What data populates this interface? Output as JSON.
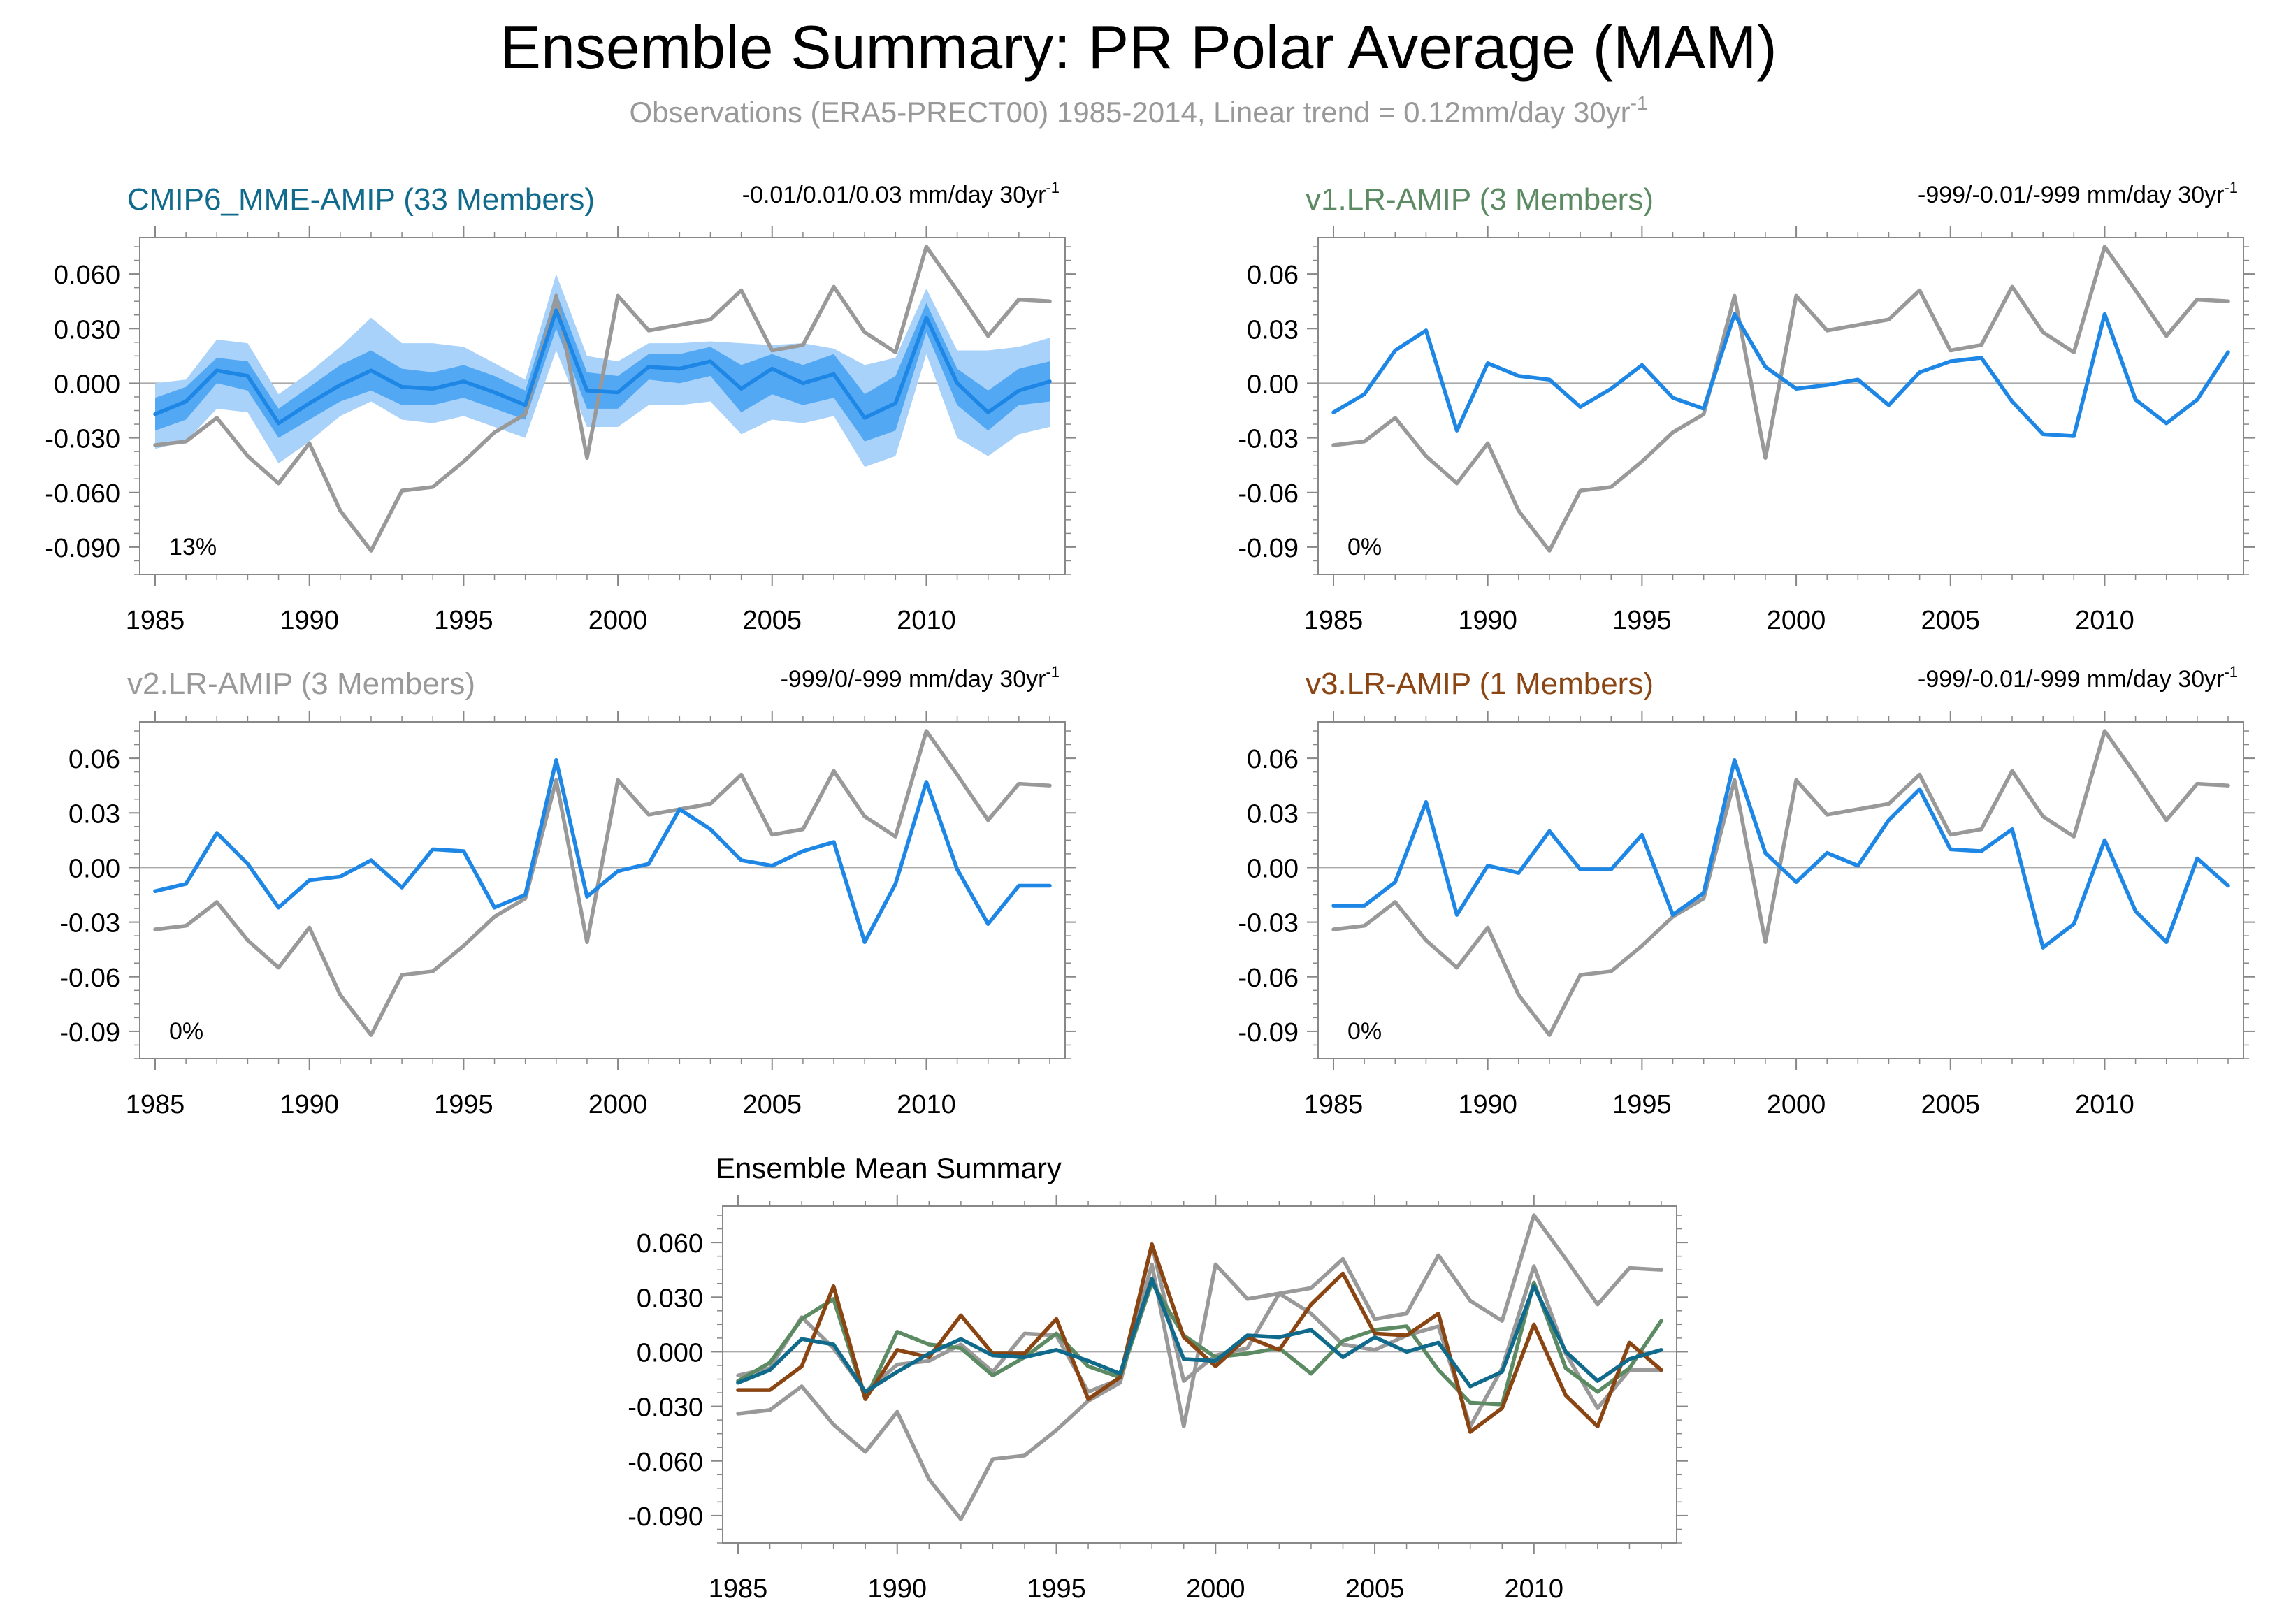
{
  "figure": {
    "title": "Ensemble Summary: PR Polar Average (MAM)",
    "subtitle_main": "Observations (ERA5-PRECT00) 1985-2014, Linear trend = 0.12mm/day 30yr",
    "subtitle_sup": "-1"
  },
  "colors": {
    "obs": "#999999",
    "model": "#1e87e5",
    "band_outer": "#a9d2fb",
    "band_inner": "#53a8f4",
    "mme": "#0f6a8b",
    "v1": "#5c8a62",
    "v2": "#999999",
    "v3": "#8a4513",
    "zero_line": "#aaaaaa",
    "axis": "#888888"
  },
  "chart_data": [
    {
      "type": "line",
      "title": "CMIP6_MME-AMIP (33 Members)",
      "trend_text": "-0.01/0.01/0.03 mm/day 30yr",
      "trend_sup": "-1",
      "percent_text": "13%",
      "x": [
        1985,
        1986,
        1987,
        1988,
        1989,
        1990,
        1991,
        1992,
        1993,
        1994,
        1995,
        1996,
        1997,
        1998,
        1999,
        2000,
        2001,
        2002,
        2003,
        2004,
        2005,
        2006,
        2007,
        2008,
        2009,
        2010,
        2011,
        2012,
        2013,
        2014
      ],
      "ylim": [
        -0.105,
        0.08
      ],
      "yticks": [
        "0.060",
        "0.030",
        "0.000",
        "-0.030",
        "-0.060",
        "-0.090"
      ],
      "ytick_values": [
        0.06,
        0.03,
        0.0,
        -0.03,
        -0.06,
        -0.09
      ],
      "xticks": [
        1985,
        1990,
        1995,
        2000,
        2005,
        2010
      ],
      "bands": {
        "outer_upper": [
          0.0,
          0.002,
          0.024,
          0.022,
          -0.006,
          0.006,
          0.02,
          0.036,
          0.022,
          0.022,
          0.02,
          0.011,
          0.002,
          0.06,
          0.015,
          0.012,
          0.022,
          0.022,
          0.023,
          0.022,
          0.021,
          0.022,
          0.019,
          0.01,
          0.014,
          0.052,
          0.018,
          0.018,
          0.02,
          0.025
        ],
        "outer_lower": [
          -0.036,
          -0.032,
          -0.014,
          -0.016,
          -0.044,
          -0.032,
          -0.018,
          -0.01,
          -0.02,
          -0.022,
          -0.018,
          -0.024,
          -0.03,
          0.018,
          -0.024,
          -0.024,
          -0.012,
          -0.012,
          -0.01,
          -0.028,
          -0.02,
          -0.022,
          -0.018,
          -0.046,
          -0.04,
          0.016,
          -0.03,
          -0.04,
          -0.028,
          -0.024
        ],
        "inner_upper": [
          -0.008,
          -0.002,
          0.014,
          0.012,
          -0.014,
          -0.002,
          0.01,
          0.018,
          0.008,
          0.006,
          0.01,
          0.004,
          -0.004,
          0.05,
          0.006,
          0.004,
          0.016,
          0.016,
          0.02,
          0.01,
          0.016,
          0.01,
          0.016,
          -0.006,
          0.004,
          0.044,
          0.008,
          -0.004,
          0.008,
          0.012
        ],
        "inner_lower": [
          -0.026,
          -0.02,
          0.0,
          -0.004,
          -0.03,
          -0.02,
          -0.01,
          -0.004,
          -0.012,
          -0.012,
          -0.008,
          -0.014,
          -0.02,
          0.03,
          -0.014,
          -0.014,
          0.002,
          0.0,
          0.004,
          -0.016,
          -0.006,
          -0.012,
          -0.008,
          -0.032,
          -0.026,
          0.028,
          -0.012,
          -0.026,
          -0.012,
          -0.01
        ]
      },
      "series": [
        {
          "name": "",
          "role": "obs",
          "values": [
            -0.034,
            -0.032,
            -0.019,
            -0.04,
            -0.055,
            -0.033,
            -0.07,
            -0.092,
            -0.059,
            -0.057,
            -0.043,
            -0.027,
            -0.017,
            0.048,
            -0.041,
            0.048,
            0.029,
            0.032,
            0.035,
            0.051,
            0.018,
            0.021,
            0.053,
            0.028,
            0.017,
            0.075,
            0.051,
            0.026,
            0.046,
            0.045
          ]
        },
        {
          "name": "",
          "role": "model",
          "values": [
            -0.017,
            -0.01,
            0.007,
            0.004,
            -0.022,
            -0.011,
            -0.001,
            0.007,
            -0.002,
            -0.003,
            0.001,
            -0.005,
            -0.012,
            0.04,
            -0.004,
            -0.005,
            0.009,
            0.008,
            0.012,
            -0.003,
            0.008,
            0.0,
            0.005,
            -0.019,
            -0.011,
            0.036,
            0.0,
            -0.016,
            -0.004,
            0.001
          ]
        }
      ]
    },
    {
      "type": "line",
      "title": "v1.LR-AMIP (3 Members)",
      "trend_text": "-999/-0.01/-999 mm/day 30yr",
      "trend_sup": "-1",
      "percent_text": "0%",
      "x": [
        1985,
        1986,
        1987,
        1988,
        1989,
        1990,
        1991,
        1992,
        1993,
        1994,
        1995,
        1996,
        1997,
        1998,
        1999,
        2000,
        2001,
        2002,
        2003,
        2004,
        2005,
        2006,
        2007,
        2008,
        2009,
        2010,
        2011,
        2012,
        2013,
        2014
      ],
      "ylim": [
        -0.105,
        0.08
      ],
      "yticks": [
        "0.06",
        "0.03",
        "0.00",
        "-0.03",
        "-0.06",
        "-0.09"
      ],
      "ytick_values": [
        0.06,
        0.03,
        0.0,
        -0.03,
        -0.06,
        -0.09
      ],
      "xticks": [
        1985,
        1990,
        1995,
        2000,
        2005,
        2010
      ],
      "series": [
        {
          "name": "",
          "role": "obs",
          "values": [
            -0.034,
            -0.032,
            -0.019,
            -0.04,
            -0.055,
            -0.033,
            -0.07,
            -0.092,
            -0.059,
            -0.057,
            -0.043,
            -0.027,
            -0.017,
            0.048,
            -0.041,
            0.048,
            0.029,
            0.032,
            0.035,
            0.051,
            0.018,
            0.021,
            0.053,
            0.028,
            0.017,
            0.075,
            0.051,
            0.026,
            0.046,
            0.045
          ]
        },
        {
          "name": "",
          "role": "model",
          "values": [
            -0.016,
            -0.006,
            0.018,
            0.029,
            -0.026,
            0.011,
            0.004,
            0.002,
            -0.013,
            -0.003,
            0.01,
            -0.008,
            -0.014,
            0.038,
            0.009,
            -0.003,
            -0.001,
            0.002,
            -0.012,
            0.006,
            0.012,
            0.014,
            -0.01,
            -0.028,
            -0.029,
            0.038,
            -0.009,
            -0.022,
            -0.009,
            0.017
          ]
        }
      ]
    },
    {
      "type": "line",
      "title": "v2.LR-AMIP (3 Members)",
      "trend_text": "-999/0/-999 mm/day 30yr",
      "trend_sup": "-1",
      "percent_text": "0%",
      "x": [
        1985,
        1986,
        1987,
        1988,
        1989,
        1990,
        1991,
        1992,
        1993,
        1994,
        1995,
        1996,
        1997,
        1998,
        1999,
        2000,
        2001,
        2002,
        2003,
        2004,
        2005,
        2006,
        2007,
        2008,
        2009,
        2010,
        2011,
        2012,
        2013,
        2014
      ],
      "ylim": [
        -0.105,
        0.08
      ],
      "yticks": [
        "0.06",
        "0.03",
        "0.00",
        "-0.03",
        "-0.06",
        "-0.09"
      ],
      "ytick_values": [
        0.06,
        0.03,
        0.0,
        -0.03,
        -0.06,
        -0.09
      ],
      "xticks": [
        1985,
        1990,
        1995,
        2000,
        2005,
        2010
      ],
      "series": [
        {
          "name": "",
          "role": "obs",
          "values": [
            -0.034,
            -0.032,
            -0.019,
            -0.04,
            -0.055,
            -0.033,
            -0.07,
            -0.092,
            -0.059,
            -0.057,
            -0.043,
            -0.027,
            -0.017,
            0.048,
            -0.041,
            0.048,
            0.029,
            0.032,
            0.035,
            0.051,
            0.018,
            0.021,
            0.053,
            0.028,
            0.017,
            0.075,
            0.051,
            0.026,
            0.046,
            0.045
          ]
        },
        {
          "name": "",
          "role": "model",
          "values": [
            -0.013,
            -0.009,
            0.019,
            0.002,
            -0.022,
            -0.007,
            -0.005,
            0.004,
            -0.011,
            0.01,
            0.009,
            -0.022,
            -0.015,
            0.059,
            -0.016,
            -0.002,
            0.002,
            0.032,
            0.021,
            0.004,
            0.001,
            0.009,
            0.014,
            -0.041,
            -0.009,
            0.047,
            -0.001,
            -0.031,
            -0.01,
            -0.01
          ]
        }
      ]
    },
    {
      "type": "line",
      "title": "v3.LR-AMIP (1 Members)",
      "trend_text": "-999/-0.01/-999 mm/day 30yr",
      "trend_sup": "-1",
      "percent_text": "0%",
      "x": [
        1985,
        1986,
        1987,
        1988,
        1989,
        1990,
        1991,
        1992,
        1993,
        1994,
        1995,
        1996,
        1997,
        1998,
        1999,
        2000,
        2001,
        2002,
        2003,
        2004,
        2005,
        2006,
        2007,
        2008,
        2009,
        2010,
        2011,
        2012,
        2013,
        2014
      ],
      "ylim": [
        -0.105,
        0.08
      ],
      "yticks": [
        "0.06",
        "0.03",
        "0.00",
        "-0.03",
        "-0.06",
        "-0.09"
      ],
      "ytick_values": [
        0.06,
        0.03,
        0.0,
        -0.03,
        -0.06,
        -0.09
      ],
      "xticks": [
        1985,
        1990,
        1995,
        2000,
        2005,
        2010
      ],
      "series": [
        {
          "name": "",
          "role": "obs",
          "values": [
            -0.034,
            -0.032,
            -0.019,
            -0.04,
            -0.055,
            -0.033,
            -0.07,
            -0.092,
            -0.059,
            -0.057,
            -0.043,
            -0.027,
            -0.017,
            0.048,
            -0.041,
            0.048,
            0.029,
            0.032,
            0.035,
            0.051,
            0.018,
            0.021,
            0.053,
            0.028,
            0.017,
            0.075,
            0.051,
            0.026,
            0.046,
            0.045
          ]
        },
        {
          "name": "",
          "role": "model",
          "values": [
            -0.021,
            -0.021,
            -0.008,
            0.036,
            -0.026,
            0.001,
            -0.003,
            0.02,
            -0.001,
            -0.001,
            0.018,
            -0.026,
            -0.014,
            0.059,
            0.008,
            -0.008,
            0.008,
            0.001,
            0.026,
            0.043,
            0.01,
            0.009,
            0.021,
            -0.044,
            -0.031,
            0.015,
            -0.024,
            -0.041,
            0.005,
            -0.01
          ]
        }
      ]
    },
    {
      "type": "line",
      "title": "Ensemble Mean Summary",
      "x": [
        1985,
        1986,
        1987,
        1988,
        1989,
        1990,
        1991,
        1992,
        1993,
        1994,
        1995,
        1996,
        1997,
        1998,
        1999,
        2000,
        2001,
        2002,
        2003,
        2004,
        2005,
        2006,
        2007,
        2008,
        2009,
        2010,
        2011,
        2012,
        2013,
        2014
      ],
      "ylim": [
        -0.105,
        0.08
      ],
      "yticks": [
        "0.060",
        "0.030",
        "0.000",
        "-0.030",
        "-0.060",
        "-0.090"
      ],
      "ytick_values": [
        0.06,
        0.03,
        0.0,
        -0.03,
        -0.06,
        -0.09
      ],
      "xticks": [
        1985,
        1990,
        1995,
        2000,
        2005,
        2010
      ],
      "series": [
        {
          "name": "",
          "role": "obs",
          "values": [
            -0.034,
            -0.032,
            -0.019,
            -0.04,
            -0.055,
            -0.033,
            -0.07,
            -0.092,
            -0.059,
            -0.057,
            -0.043,
            -0.027,
            -0.017,
            0.048,
            -0.041,
            0.048,
            0.029,
            0.032,
            0.035,
            0.051,
            0.018,
            0.021,
            0.053,
            0.028,
            0.017,
            0.075,
            0.051,
            0.026,
            0.046,
            0.045
          ]
        },
        {
          "name": "",
          "role": "v2",
          "values": [
            -0.013,
            -0.009,
            0.019,
            0.002,
            -0.022,
            -0.007,
            -0.005,
            0.004,
            -0.011,
            0.01,
            0.009,
            -0.022,
            -0.015,
            0.059,
            -0.016,
            -0.002,
            0.002,
            0.032,
            0.021,
            0.004,
            0.001,
            0.009,
            0.014,
            -0.041,
            -0.009,
            0.047,
            -0.001,
            -0.031,
            -0.01,
            -0.01
          ]
        },
        {
          "name": "",
          "role": "v1",
          "values": [
            -0.016,
            -0.006,
            0.018,
            0.029,
            -0.026,
            0.011,
            0.004,
            0.002,
            -0.013,
            -0.003,
            0.01,
            -0.008,
            -0.014,
            0.038,
            0.009,
            -0.003,
            -0.001,
            0.002,
            -0.012,
            0.006,
            0.012,
            0.014,
            -0.01,
            -0.028,
            -0.029,
            0.038,
            -0.009,
            -0.022,
            -0.009,
            0.017
          ]
        },
        {
          "name": "",
          "role": "v3",
          "values": [
            -0.021,
            -0.021,
            -0.008,
            0.036,
            -0.026,
            0.001,
            -0.003,
            0.02,
            -0.001,
            -0.001,
            0.018,
            -0.026,
            -0.014,
            0.059,
            0.008,
            -0.008,
            0.008,
            0.001,
            0.026,
            0.043,
            0.01,
            0.009,
            0.021,
            -0.044,
            -0.031,
            0.015,
            -0.024,
            -0.041,
            0.005,
            -0.01
          ]
        },
        {
          "name": "",
          "role": "mme",
          "values": [
            -0.017,
            -0.01,
            0.007,
            0.004,
            -0.022,
            -0.011,
            -0.001,
            0.007,
            -0.002,
            -0.003,
            0.001,
            -0.005,
            -0.012,
            0.04,
            -0.004,
            -0.005,
            0.009,
            0.008,
            0.012,
            -0.003,
            0.008,
            0.0,
            0.005,
            -0.019,
            -0.011,
            0.036,
            0.0,
            -0.016,
            -0.004,
            0.001
          ]
        }
      ]
    }
  ]
}
